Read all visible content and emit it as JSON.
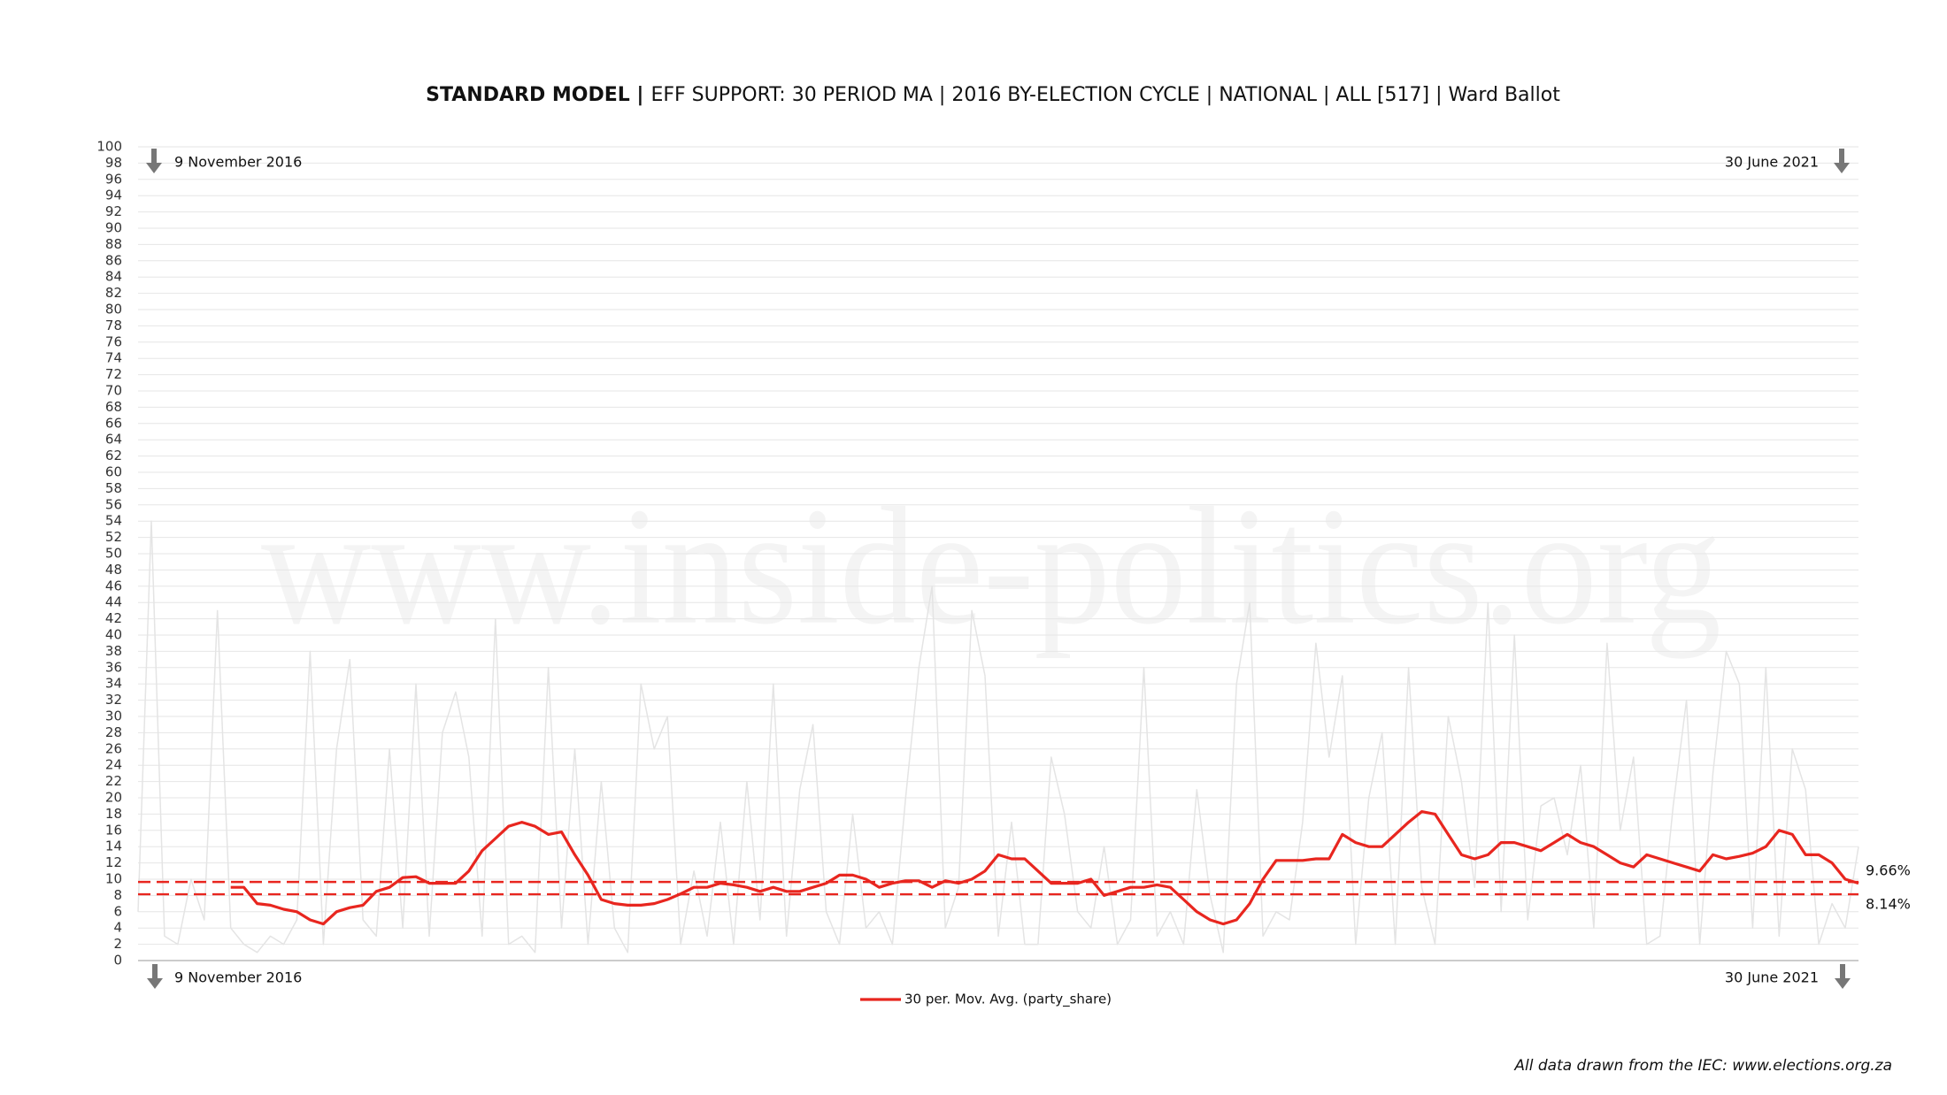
{
  "chart_data": {
    "type": "line",
    "title_bold": "STANDARD MODEL |",
    "title": "EFF SUPPORT: 30 PERIOD MA | 2016 BY-ELECTION CYCLE | NATIONAL | ALL [517] | Ward Ballot",
    "watermark": "www.inside-politics.org",
    "start_date": "9 November 2016",
    "end_date": "30 June 2021",
    "source": "All data drawn from the IEC: www.elections.org.za",
    "ylim": [
      0,
      100
    ],
    "yticks": [
      0,
      2,
      4,
      6,
      8,
      10,
      12,
      14,
      16,
      18,
      20,
      22,
      24,
      26,
      28,
      30,
      32,
      34,
      36,
      38,
      40,
      42,
      44,
      46,
      48,
      50,
      52,
      54,
      56,
      58,
      60,
      62,
      64,
      66,
      68,
      70,
      72,
      74,
      76,
      78,
      80,
      82,
      84,
      86,
      88,
      90,
      92,
      94,
      96,
      98,
      100
    ],
    "grid": true,
    "reference_lines": [
      {
        "value": 9.66,
        "label": "9.66%",
        "color": "#e8261f"
      },
      {
        "value": 8.14,
        "label": "8.14%",
        "color": "#e8261f"
      }
    ],
    "series": [
      {
        "color": "#e4e4e4",
        "values": [
          6,
          54,
          3,
          2,
          10,
          5,
          43,
          4,
          2,
          1,
          3,
          2,
          5,
          38,
          2,
          26,
          37,
          5,
          3,
          26,
          4,
          34,
          3,
          28,
          33,
          25,
          3,
          42,
          2,
          3,
          1,
          36,
          4,
          26,
          2,
          22,
          4,
          1,
          34,
          26,
          30,
          2,
          11,
          3,
          17,
          2,
          22,
          5,
          34,
          3,
          21,
          29,
          6,
          2,
          18,
          4,
          6,
          2,
          20,
          36,
          46,
          4,
          9,
          43,
          35,
          3,
          17,
          2,
          2,
          25,
          18,
          6,
          4,
          14,
          2,
          5,
          36,
          3,
          6,
          2,
          21,
          8,
          1,
          34,
          44,
          3,
          6,
          5,
          17,
          39,
          25,
          35,
          2,
          20,
          28,
          2,
          36,
          9,
          2,
          30,
          22,
          9,
          44,
          6,
          40,
          5,
          19,
          20,
          13,
          24,
          4,
          39,
          16,
          25,
          2,
          3,
          19,
          32,
          2,
          23,
          38,
          34,
          4,
          36,
          3,
          26,
          21,
          2,
          7,
          4,
          14
        ]
      },
      {
        "name": "30 per. Mov. Avg. (party_share)",
        "color": "#e8261f",
        "values": [
          null,
          null,
          null,
          null,
          null,
          null,
          null,
          9,
          9,
          7,
          6.8,
          6.3,
          6,
          5,
          4.5,
          6,
          6.5,
          6.8,
          8.5,
          9,
          10.2,
          10.3,
          9.5,
          9.5,
          9.5,
          11,
          13.5,
          15,
          16.5,
          17,
          16.5,
          15.5,
          15.8,
          13,
          10.5,
          7.5,
          7,
          6.8,
          6.8,
          7,
          7.5,
          8.2,
          9,
          9,
          9.5,
          9.3,
          9,
          8.5,
          9,
          8.5,
          8.5,
          9,
          9.5,
          10.5,
          10.5,
          10,
          9,
          9.5,
          9.8,
          9.8,
          9,
          9.8,
          9.5,
          10,
          11,
          13,
          12.5,
          12.5,
          11,
          9.5,
          9.5,
          9.5,
          10,
          8,
          8.5,
          9,
          9,
          9.3,
          9,
          7.5,
          6,
          5,
          4.5,
          5,
          7,
          10,
          12.3,
          12.3,
          12.3,
          12.5,
          12.5,
          15.5,
          14.5,
          14,
          14,
          15.5,
          17,
          18.3,
          18,
          15.5,
          13,
          12.5,
          13,
          14.5,
          14.5,
          14,
          13.5,
          14.5,
          15.5,
          14.5,
          14,
          13,
          12,
          11.5,
          13,
          12.5,
          12,
          11.5,
          11,
          13,
          12.5,
          12.8,
          13.2,
          14,
          16,
          15.5,
          13,
          13,
          12,
          10,
          9.5
        ]
      }
    ]
  }
}
